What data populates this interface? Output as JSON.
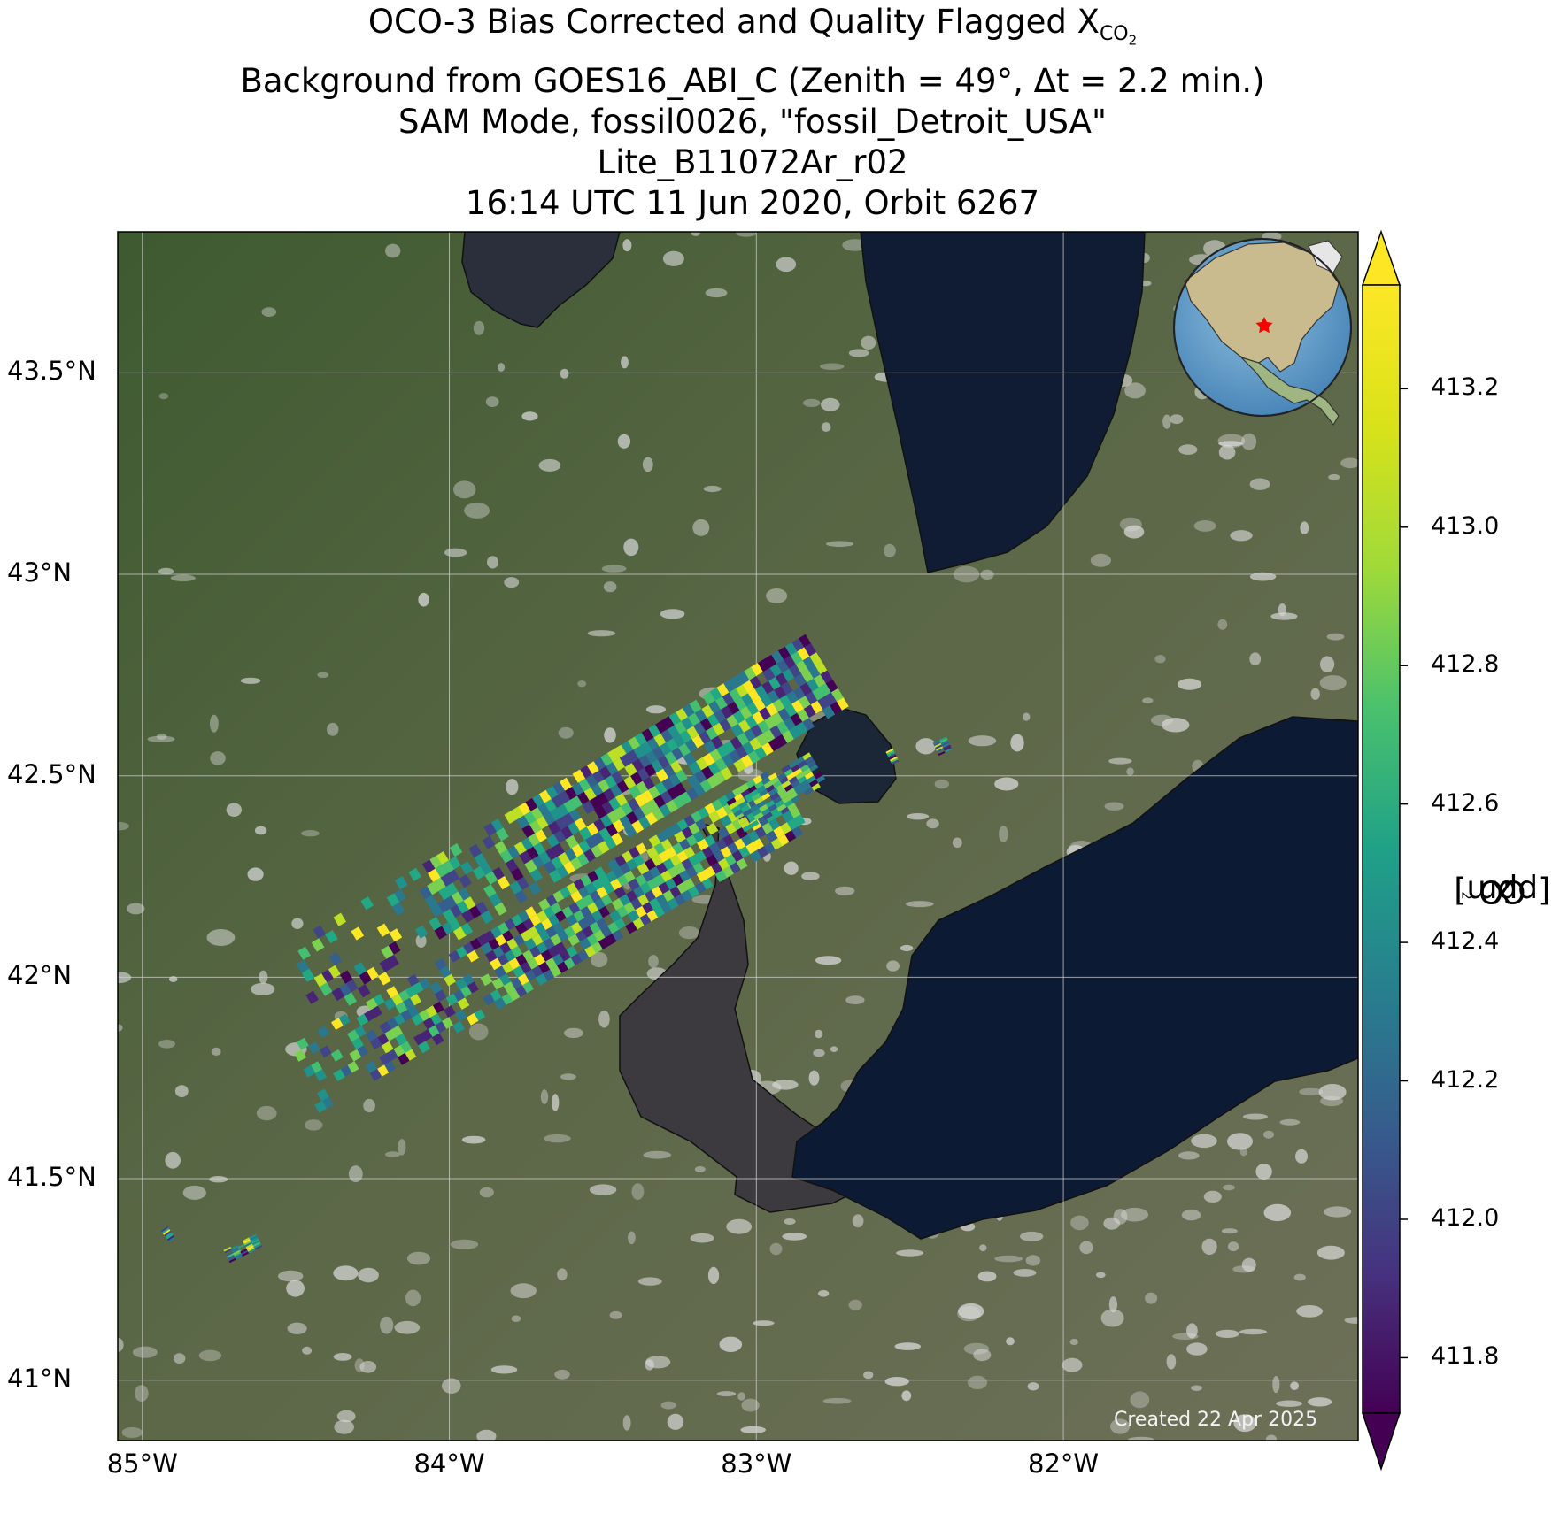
{
  "title": {
    "line1_text": "OCO-3 Bias Corrected and Quality Flagged X",
    "line1_sub": "CO",
    "line1_subsub": "2",
    "line2": "Background from GOES16_ABI_C (Zenith = 49°, Δt =  2.2 min.)",
    "line3": "SAM Mode, fossil0026, \"fossil_Detroit_USA\"",
    "line4": "Lite_B11072Ar_r02",
    "line5": "16:14 UTC 11 Jun 2020, Orbit 6267"
  },
  "map": {
    "lon_range": [
      -85.08,
      -81.04
    ],
    "lat_range": [
      40.85,
      43.85
    ],
    "lon_ticks": [
      {
        "value": -85,
        "label": "85°W"
      },
      {
        "value": -84,
        "label": "84°W"
      },
      {
        "value": -83,
        "label": "83°W"
      },
      {
        "value": -82,
        "label": "82°W"
      }
    ],
    "lat_ticks": [
      {
        "value": 43.5,
        "label": "43.5°N"
      },
      {
        "value": 43.0,
        "label": "43°N"
      },
      {
        "value": 42.5,
        "label": "42.5°N"
      },
      {
        "value": 42.0,
        "label": "42°N"
      },
      {
        "value": 41.5,
        "label": "41.5°N"
      },
      {
        "value": 41.0,
        "label": "41°N"
      }
    ],
    "gridlines": true,
    "target_marker": {
      "lon": -83.05,
      "lat": 42.33,
      "color": "#ff0000"
    },
    "inset_globe": {
      "position": "top-right"
    }
  },
  "colorbar": {
    "range": [
      411.72,
      413.35
    ],
    "colormap": "viridis",
    "extend": "both",
    "ticks": [
      {
        "value": 413.2,
        "label": "413.2"
      },
      {
        "value": 413.0,
        "label": "413.0"
      },
      {
        "value": 412.8,
        "label": "412.8"
      },
      {
        "value": 412.6,
        "label": "412.6"
      },
      {
        "value": 412.4,
        "label": "412.4"
      },
      {
        "value": 412.2,
        "label": "412.2"
      },
      {
        "value": 412.0,
        "label": "412.0"
      },
      {
        "value": 411.8,
        "label": "411.8"
      }
    ],
    "label_text": "X",
    "label_sub": "CO",
    "label_subsub": "2",
    "label_units": " [ppm]"
  },
  "credit": "Created 22 Apr 2025"
}
